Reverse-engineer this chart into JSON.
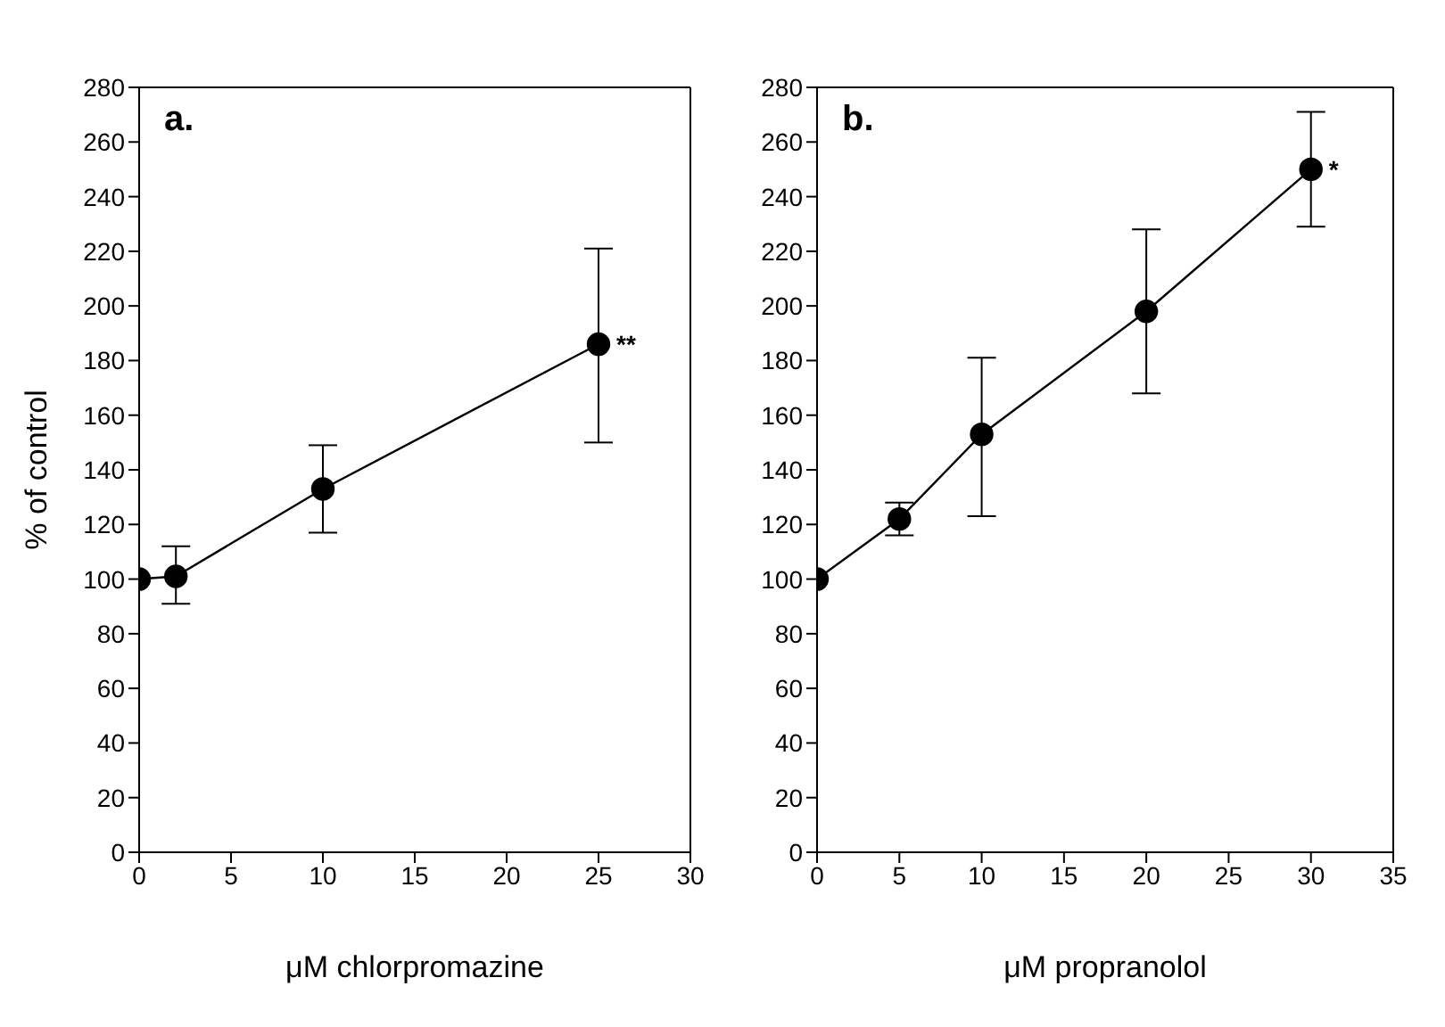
{
  "chart_data": [
    {
      "type": "line",
      "xlabel": "μM chlorpromazine",
      "ylabel": "% of control",
      "x": [
        0,
        2,
        10,
        25
      ],
      "series": [
        {
          "color": "#000000",
          "values": [
            100,
            101,
            133,
            186
          ],
          "errors": [
            null,
            [
              91,
              112
            ],
            [
              117,
              149
            ],
            [
              150,
              221
            ]
          ]
        }
      ],
      "xlim": [
        0,
        30
      ],
      "xticks": [
        0,
        5,
        10,
        15,
        20,
        25,
        30
      ],
      "ylim": [
        0,
        280
      ],
      "yticks": [
        0,
        20,
        40,
        60,
        80,
        100,
        120,
        140,
        160,
        180,
        200,
        220,
        240,
        260,
        280
      ],
      "marker": "circle",
      "line_style": "solid",
      "grid": false,
      "legend": false,
      "annotations": [
        "a.",
        {
          "text": "**",
          "x": 25,
          "y": 186
        }
      ]
    },
    {
      "type": "line",
      "xlabel": "μM propranolol",
      "x": [
        0,
        5,
        10,
        20,
        30
      ],
      "series": [
        {
          "color": "#000000",
          "values": [
            100,
            122,
            153,
            198,
            250
          ],
          "errors": [
            null,
            [
              116,
              128
            ],
            [
              123,
              181
            ],
            [
              168,
              228
            ],
            [
              229,
              271
            ]
          ]
        }
      ],
      "xlim": [
        0,
        35
      ],
      "xticks": [
        0,
        5,
        10,
        15,
        20,
        25,
        30,
        35
      ],
      "ylim": [
        0,
        280
      ],
      "yticks": [
        0,
        20,
        40,
        60,
        80,
        100,
        120,
        140,
        160,
        180,
        200,
        220,
        240,
        260,
        280
      ],
      "marker": "circle",
      "line_style": "solid",
      "grid": false,
      "legend": false,
      "annotations": [
        "b.",
        {
          "text": "*",
          "x": 30,
          "y": 250
        }
      ]
    }
  ]
}
